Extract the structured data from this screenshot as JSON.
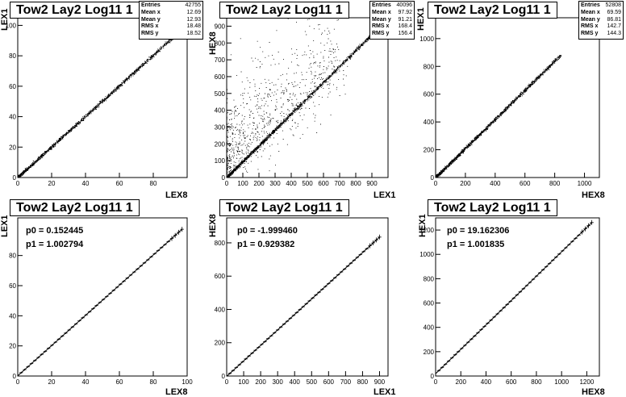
{
  "chart_data": [
    {
      "type": "scatter",
      "title": "Tow2 Lay2 Log11 1",
      "xlabel": "LEX8",
      "ylabel": "LEX1",
      "xlim": [
        0,
        100
      ],
      "ylim": [
        0,
        105
      ],
      "xticks": [
        "0",
        "20",
        "40",
        "60",
        "80"
      ],
      "yticks": [
        "0",
        "20",
        "40",
        "60",
        "80",
        "100"
      ],
      "stats": [
        [
          "Entries",
          "42755"
        ],
        [
          "Mean x",
          "12.69"
        ],
        [
          "Mean y",
          "12.93"
        ],
        [
          "RMS x",
          "18.48"
        ],
        [
          "RMS y",
          "18.52"
        ]
      ],
      "trend": {
        "x": [
          0,
          97
        ],
        "y": [
          0,
          97.5
        ]
      }
    },
    {
      "type": "scatter",
      "title": "Tow2 Lay2 Log11 1",
      "xlabel": "LEX1",
      "ylabel": "HEX8",
      "xlim": [
        0,
        1000
      ],
      "ylim": [
        0,
        950
      ],
      "xticks": [
        "0",
        "100",
        "200",
        "300",
        "400",
        "500",
        "600",
        "700",
        "800",
        "900"
      ],
      "yticks": [
        "0",
        "100",
        "200",
        "300",
        "400",
        "500",
        "600",
        "700",
        "800",
        "900"
      ],
      "stats": [
        [
          "Entries",
          "40096"
        ],
        [
          "Mean x",
          "97.92"
        ],
        [
          "Mean y",
          "91.21"
        ],
        [
          "RMS x",
          "168.4"
        ],
        [
          "RMS y",
          "156.4"
        ]
      ],
      "trend": {
        "x": [
          0,
          900
        ],
        "y": [
          0,
          850
        ]
      }
    },
    {
      "type": "scatter",
      "title": "Tow2 Lay2 Log11 1",
      "xlabel": "HEX8",
      "ylabel": "HEX1",
      "xlim": [
        0,
        1100
      ],
      "ylim": [
        0,
        1150
      ],
      "xticks": [
        "0",
        "200",
        "400",
        "600",
        "800",
        "1000"
      ],
      "yticks": [
        "0",
        "200",
        "400",
        "600",
        "800",
        "1000"
      ],
      "stats": [
        [
          "Entries",
          "52808"
        ],
        [
          "Mean x",
          "69.59"
        ],
        [
          "Mean y",
          "86.81"
        ],
        [
          "RMS x",
          "142.7"
        ],
        [
          "RMS y",
          "144.3"
        ]
      ],
      "trend": {
        "x": [
          0,
          840
        ],
        "y": [
          0,
          880
        ]
      }
    },
    {
      "type": "line",
      "title": "Tow2 Lay2 Log11 1",
      "xlabel": "LEX8",
      "ylabel": "LEX1",
      "xlim": [
        0,
        100
      ],
      "ylim": [
        0,
        105
      ],
      "xticks": [
        "0",
        "20",
        "40",
        "60",
        "80",
        "100"
      ],
      "yticks": [
        "0",
        "20",
        "40",
        "60",
        "80"
      ],
      "fit": {
        "p0_label": "p0 = 0.152445",
        "p1_label": "p1 = 1.002794",
        "p0": 0.152445,
        "p1": 1.002794
      },
      "x_end": 97
    },
    {
      "type": "line",
      "title": "Tow2 Lay2 Log11 1",
      "xlabel": "LEX1",
      "ylabel": "HEX8",
      "xlim": [
        0,
        950
      ],
      "ylim": [
        0,
        950
      ],
      "xticks": [
        "0",
        "100",
        "200",
        "300",
        "400",
        "500",
        "600",
        "700",
        "800",
        "900"
      ],
      "yticks": [
        "0",
        "200",
        "400",
        "600",
        "800"
      ],
      "fit": {
        "p0_label": "p0 = -1.999460",
        "p1_label": "p1 = 0.929382",
        "p0": -1.99946,
        "p1": 0.929382
      },
      "x_end": 900
    },
    {
      "type": "line",
      "title": "Tow2 Lay2 Log11 1",
      "xlabel": "HEX8",
      "ylabel": "HEX1",
      "xlim": [
        0,
        1300
      ],
      "ylim": [
        0,
        1300
      ],
      "xticks": [
        "0",
        "200",
        "400",
        "600",
        "800",
        "1000",
        "1200"
      ],
      "yticks": [
        "0",
        "200",
        "400",
        "600",
        "800",
        "1000",
        "1200"
      ],
      "fit": {
        "p0_label": "p0 = 19.162306",
        "p1_label": "p1 = 1.001835",
        "p0": 19.162306,
        "p1": 1.001835
      },
      "x_end": 1240
    }
  ]
}
